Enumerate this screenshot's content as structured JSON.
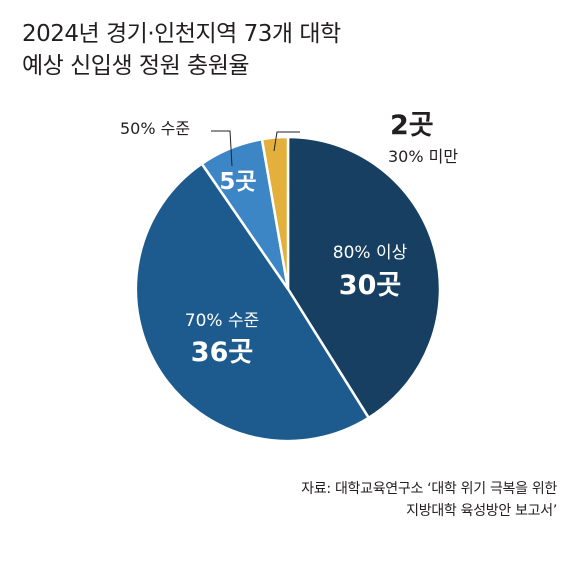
{
  "title": {
    "line1": "2024년 경기·인천지역 73개 대학",
    "line2": "예상 신입생 정원 충원율"
  },
  "source": {
    "line1": "자료: 대학교육연구소 ‘대학 위기 극복을 위한",
    "line2": "지방대학 육성방안 보고서’"
  },
  "chart_data": {
    "type": "pie",
    "total": 73,
    "start": "12 o'clock",
    "direction": "clockwise",
    "slices": [
      {
        "label": "80% 이상",
        "value": 30,
        "count_label": "30곳",
        "color": "#163f61"
      },
      {
        "label": "70% 수준",
        "value": 36,
        "count_label": "36곳",
        "color": "#1d5b8f"
      },
      {
        "label": "50% 수준",
        "value": 5,
        "count_label": "5곳",
        "color": "#3d86c6"
      },
      {
        "label": "30% 미만",
        "value": 2,
        "count_label": "2곳",
        "color": "#e3b03b"
      }
    ]
  }
}
